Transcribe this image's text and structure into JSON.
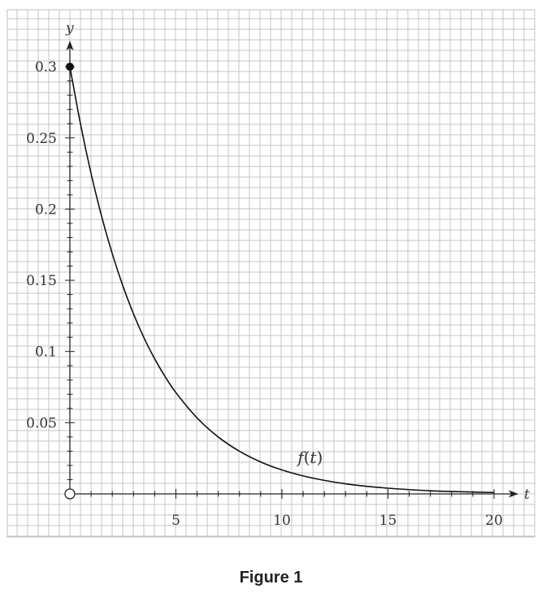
{
  "caption": "Figure 1",
  "chart_data": {
    "type": "line",
    "title": "",
    "xlabel": "t",
    "ylabel": "y",
    "xlim": [
      -2,
      22
    ],
    "ylim": [
      -0.03,
      0.34
    ],
    "xticks": [
      5,
      10,
      15,
      20
    ],
    "xtick_labels": [
      "5",
      "10",
      "15",
      "20"
    ],
    "yticks": [
      0.05,
      0.1,
      0.15,
      0.2,
      0.25,
      0.3
    ],
    "ytick_labels": [
      "0.05",
      "0.1",
      "0.15",
      "0.2",
      "0.25",
      "0.3"
    ],
    "grid": true,
    "origin_marker": "open-circle",
    "series": [
      {
        "name": "f(t)",
        "x": [
          0,
          0.5,
          1,
          1.5,
          2,
          2.5,
          3,
          3.5,
          4,
          4.5,
          5,
          6,
          7,
          8,
          9,
          10,
          11,
          12,
          13,
          14,
          15,
          16,
          17,
          18,
          19,
          20
        ],
        "y": [
          0.3,
          0.2598,
          0.2249,
          0.1947,
          0.1686,
          0.146,
          0.1264,
          0.1094,
          0.0948,
          0.0821,
          0.0711,
          0.0533,
          0.0399,
          0.0299,
          0.0224,
          0.0168,
          0.0126,
          0.0095,
          0.0071,
          0.0053,
          0.004,
          0.003,
          0.0022,
          0.0017,
          0.0013,
          0.001
        ]
      }
    ],
    "start_point": {
      "x": 0,
      "y": 0.3,
      "marker": "filled-circle"
    },
    "annotation": {
      "prefix": "f",
      "open": "(",
      "var": "t",
      "close": ")",
      "x": 12,
      "y": 0.025
    }
  }
}
